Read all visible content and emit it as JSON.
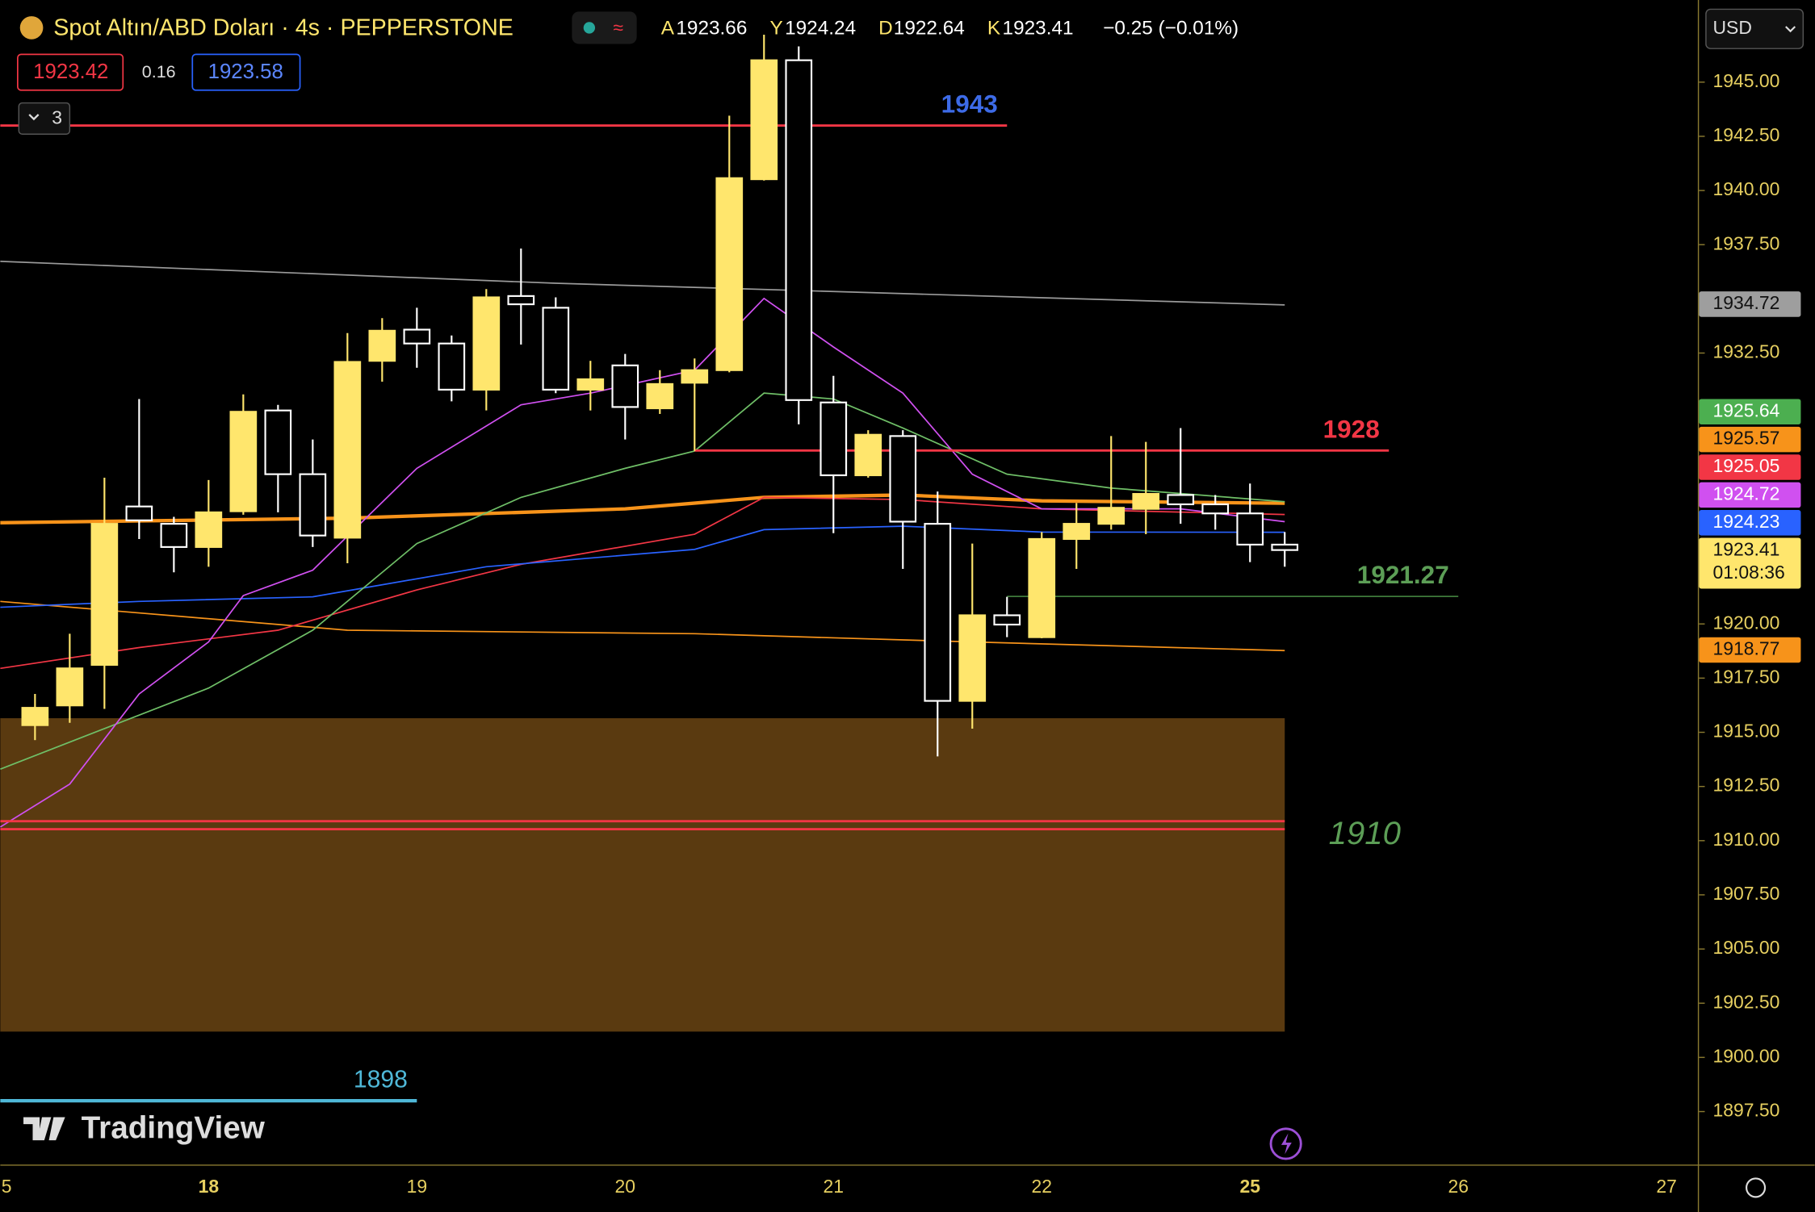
{
  "header": {
    "symbol": "Spot Altın/ABD Doları · 4s · PEPPERSTONE",
    "ohlc": [
      {
        "label": "A",
        "value": "1923.66"
      },
      {
        "label": "Y",
        "value": "1924.24"
      },
      {
        "label": "D",
        "value": "1922.64"
      },
      {
        "label": "K",
        "value": "1923.41"
      }
    ],
    "change": "−0.25 (−0.01%)",
    "bid": "1923.42",
    "spread": "0.16",
    "ask": "1923.58",
    "indicators_count": "3",
    "currency": "USD"
  },
  "brand": "TradingView",
  "chart_data": {
    "type": "candlestick",
    "up_color": "#ffe66d",
    "down_color": "#ffffff",
    "open": [
      1915.33,
      1916.24,
      1918.11,
      1925.42,
      1924.62,
      1923.55,
      1925.2,
      1929.85,
      1926.91,
      1923.98,
      1932.14,
      1933.58,
      1932.94,
      1930.81,
      1935.13,
      1934.59,
      1930.81,
      1931.93,
      1929.95,
      1931.13,
      1931.71,
      1940.52,
      1946.01,
      1930.22,
      1926.86,
      1928.67,
      1924.62,
      1916.45,
      1920.4,
      1919.39,
      1923.92,
      1924.62,
      1925.31,
      1925.95,
      1925.52,
      1925.1,
      1923.66
    ],
    "high": [
      1916.77,
      1919.55,
      1926.75,
      1930.38,
      1924.94,
      1926.64,
      1930.59,
      1930.11,
      1928.51,
      1933.42,
      1934.11,
      1934.59,
      1933.31,
      1935.45,
      1937.32,
      1935.07,
      1932.14,
      1932.46,
      1931.71,
      1932.25,
      1943.45,
      1947.19,
      1946.65,
      1931.45,
      1928.94,
      1928.94,
      1926.11,
      1923.71,
      1921.25,
      1924.24,
      1925.58,
      1928.67,
      1928.4,
      1929.04,
      1925.95,
      1926.48,
      1924.24
    ],
    "low": [
      1914.64,
      1915.44,
      1916.08,
      1923.92,
      1922.38,
      1922.64,
      1925.04,
      1925.15,
      1923.55,
      1922.8,
      1931.18,
      1931.82,
      1930.27,
      1929.85,
      1932.89,
      1930.65,
      1929.85,
      1928.51,
      1929.69,
      1927.98,
      1931.61,
      1940.46,
      1929.21,
      1924.19,
      1926.75,
      1922.54,
      1913.89,
      1915.17,
      1919.39,
      1919.34,
      1922.54,
      1924.35,
      1924.14,
      1924.62,
      1924.35,
      1922.85,
      1922.64
    ],
    "close": [
      1916.13,
      1917.95,
      1924.62,
      1924.78,
      1923.55,
      1925.15,
      1929.79,
      1926.91,
      1924.08,
      1932.09,
      1933.53,
      1932.94,
      1930.81,
      1935.07,
      1934.75,
      1930.81,
      1931.29,
      1930.01,
      1931.07,
      1931.71,
      1940.57,
      1946.01,
      1930.33,
      1926.86,
      1928.73,
      1924.72,
      1916.45,
      1920.4,
      1919.97,
      1923.92,
      1924.62,
      1925.36,
      1926.0,
      1925.52,
      1925.1,
      1923.66,
      1923.41
    ],
    "ylim": [
      1895.0,
      1948.79
    ],
    "yticks": [
      {
        "value": 1945,
        "label": "1945.00"
      },
      {
        "value": 1942.5,
        "label": "1942.50"
      },
      {
        "value": 1940,
        "label": "1940.00"
      },
      {
        "value": 1937.5,
        "label": "1937.50"
      },
      {
        "value": 1932.5,
        "label": "1932.50"
      },
      {
        "value": 1920,
        "label": "1920.00"
      },
      {
        "value": 1917.5,
        "label": "1917.50"
      },
      {
        "value": 1915,
        "label": "1915.00"
      },
      {
        "value": 1912.5,
        "label": "1912.50"
      },
      {
        "value": 1910,
        "label": "1910.00"
      },
      {
        "value": 1907.5,
        "label": "1907.50"
      },
      {
        "value": 1905,
        "label": "1905.00"
      },
      {
        "value": 1902.5,
        "label": "1902.50"
      },
      {
        "value": 1900,
        "label": "1900.00"
      },
      {
        "value": 1897.5,
        "label": "1897.50"
      }
    ],
    "xaxis_labels": [
      "5",
      "18",
      "19",
      "20",
      "21",
      "22",
      "25",
      "26",
      "27"
    ],
    "overlays": [
      {
        "color": "#9a9a9a",
        "width": 1.2,
        "x": [
          -1,
          15,
          36
        ],
        "values": [
          1936.73,
          1935.72,
          1934.72
        ]
      },
      {
        "color": "#f7931a",
        "width": 3,
        "x": [
          -1,
          9,
          17,
          21,
          25,
          29,
          36
        ],
        "values": [
          1924.67,
          1924.88,
          1925.31,
          1925.84,
          1925.95,
          1925.68,
          1925.57
        ]
      },
      {
        "color": "#f7931a",
        "width": 1.2,
        "x": [
          -1,
          9,
          19,
          27,
          36
        ],
        "values": [
          1921.04,
          1919.71,
          1919.55,
          1919.17,
          1918.77
        ]
      },
      {
        "color": "#f23645",
        "width": 1.2,
        "x": [
          -1,
          3,
          7,
          11,
          14,
          19,
          21,
          25,
          29,
          36
        ],
        "values": [
          1917.95,
          1918.91,
          1919.71,
          1921.57,
          1922.75,
          1924.14,
          1925.84,
          1925.74,
          1925.31,
          1925.05
        ]
      },
      {
        "color": "#2962ff",
        "width": 1.2,
        "x": [
          -1,
          3,
          8,
          13,
          19,
          21,
          25,
          29,
          36
        ],
        "values": [
          1920.77,
          1921.04,
          1921.25,
          1922.64,
          1923.44,
          1924.35,
          1924.51,
          1924.24,
          1924.23
        ]
      },
      {
        "color": "#6fbf67",
        "width": 1.2,
        "x": [
          -1,
          2,
          5,
          8,
          11,
          14,
          17,
          19,
          21,
          23,
          25,
          28,
          31,
          36
        ],
        "values": [
          1913.3,
          1915.17,
          1917.04,
          1919.71,
          1923.71,
          1925.84,
          1927.18,
          1927.98,
          1930.65,
          1930.38,
          1929.04,
          1926.91,
          1926.27,
          1925.64
        ]
      },
      {
        "color": "#d050f0",
        "width": 1.2,
        "x": [
          -1,
          1,
          3,
          5,
          6,
          8,
          11,
          14,
          16,
          19,
          21,
          23,
          25,
          27,
          29,
          33,
          36
        ],
        "values": [
          1910.63,
          1912.61,
          1916.77,
          1919.17,
          1921.31,
          1922.48,
          1927.18,
          1930.11,
          1930.65,
          1931.71,
          1935.02,
          1932.78,
          1930.65,
          1926.91,
          1925.31,
          1925.31,
          1924.72
        ]
      }
    ],
    "zone": {
      "top": 1915.65,
      "bottom": 1901.19,
      "x": [
        -1,
        36
      ],
      "color": "#5a3a10",
      "label": "1910",
      "label_color": "#5c9e56"
    },
    "hlines": [
      {
        "value": 1943,
        "x": [
          -1,
          28
        ],
        "color": "#f23645",
        "label": "1943",
        "label_color": "#3d6be8"
      },
      {
        "value": 1928,
        "x": [
          19,
          39
        ],
        "color": "#f23645",
        "label": "1928",
        "label_color": "#f23645"
      },
      {
        "value": 1921.27,
        "x": [
          28,
          41
        ],
        "color": "#3f7a3a",
        "label": "1921.27",
        "label_color": "#5c9e56"
      },
      {
        "value": 1910.9,
        "x": [
          -1,
          36
        ],
        "color": "#f23645"
      },
      {
        "value": 1910.53,
        "x": [
          -1,
          36
        ],
        "color": "#f23645"
      },
      {
        "value": 1898,
        "x": [
          -1,
          11
        ],
        "color": "#4fb8d8",
        "label": "1898",
        "label_color": "#4fb8d8"
      }
    ],
    "price_tags": [
      {
        "value": "1934.72",
        "color": "#9e9e9e",
        "text_color": "#111111"
      },
      {
        "value": "1925.64",
        "color": "#4caf50",
        "text_color": "#ffffff"
      },
      {
        "value": "1925.57",
        "color": "#f7931a",
        "text_color": "#111111"
      },
      {
        "value": "1925.05",
        "color": "#f23645",
        "text_color": "#ffffff"
      },
      {
        "value": "1924.72",
        "color": "#d050f0",
        "text_color": "#ffffff"
      },
      {
        "value": "1924.23",
        "color": "#2962ff",
        "text_color": "#ffffff"
      },
      {
        "value": "1923.41",
        "color": "#ffe66d",
        "text_color": "#111111"
      },
      {
        "value": "1918.77",
        "color": "#f7931a",
        "text_color": "#111111"
      }
    ],
    "countdown": "01:08:36"
  }
}
